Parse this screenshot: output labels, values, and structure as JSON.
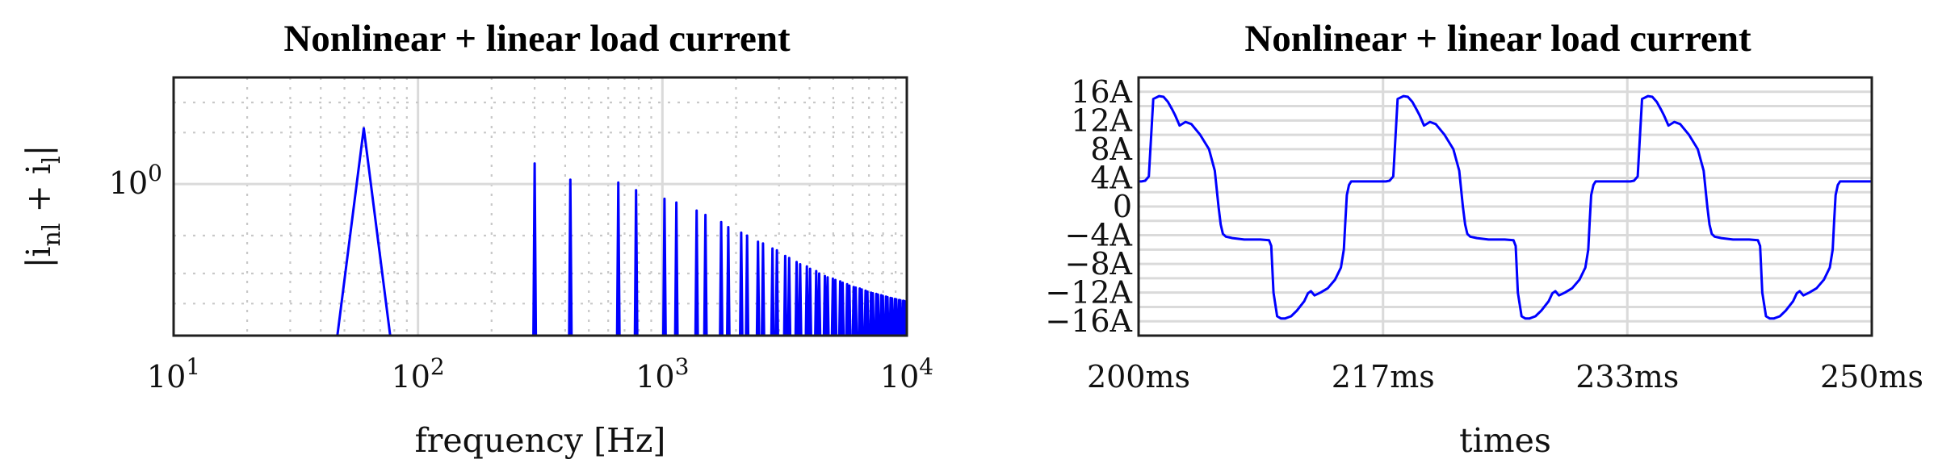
{
  "chart_data": [
    {
      "type": "line",
      "title": "Nonlinear + linear load current",
      "xlabel": "frequency [Hz]",
      "ylabel": "|i_nl + i_l|",
      "xscale": "log",
      "yscale": "log",
      "xlim": [
        10,
        10000
      ],
      "ylim": [
        0.13,
        4.2
      ],
      "x_tick_labels": [
        {
          "base": "10",
          "exp": "1",
          "value": 10
        },
        {
          "base": "10",
          "exp": "2",
          "value": 100
        },
        {
          "base": "10",
          "exp": "3",
          "value": 1000
        },
        {
          "base": "10",
          "exp": "4",
          "value": 10000
        }
      ],
      "y_tick_labels": [
        {
          "base": "10",
          "exp": "0",
          "value": 1
        }
      ],
      "grid": true,
      "series": [
        {
          "color": "#0000ff",
          "fundamental": {
            "f0": 45,
            "fpeak": 60,
            "f1": 80,
            "peak": 2.12
          },
          "harmonic_peaks": [
            {
              "f": 300,
              "v": 1.32
            },
            {
              "f": 420,
              "v": 1.06
            },
            {
              "f": 660,
              "v": 1.02
            },
            {
              "f": 780,
              "v": 0.92
            },
            {
              "f": 1020,
              "v": 0.82
            },
            {
              "f": 1140,
              "v": 0.78
            },
            {
              "f": 1380,
              "v": 0.7
            },
            {
              "f": 1500,
              "v": 0.66
            },
            {
              "f": 1740,
              "v": 0.6
            },
            {
              "f": 1860,
              "v": 0.56
            },
            {
              "f": 2100,
              "v": 0.52
            },
            {
              "f": 2220,
              "v": 0.5
            },
            {
              "f": 2460,
              "v": 0.46
            },
            {
              "f": 2580,
              "v": 0.45
            },
            {
              "f": 2820,
              "v": 0.42
            },
            {
              "f": 2940,
              "v": 0.41
            },
            {
              "f": 3180,
              "v": 0.38
            },
            {
              "f": 3300,
              "v": 0.37
            },
            {
              "f": 3540,
              "v": 0.35
            },
            {
              "f": 3660,
              "v": 0.34
            },
            {
              "f": 3900,
              "v": 0.33
            },
            {
              "f": 4020,
              "v": 0.32
            },
            {
              "f": 4260,
              "v": 0.31
            },
            {
              "f": 4380,
              "v": 0.3
            },
            {
              "f": 4620,
              "v": 0.29
            },
            {
              "f": 4740,
              "v": 0.285
            },
            {
              "f": 4980,
              "v": 0.28
            },
            {
              "f": 5100,
              "v": 0.275
            },
            {
              "f": 5340,
              "v": 0.27
            },
            {
              "f": 5460,
              "v": 0.265
            },
            {
              "f": 5700,
              "v": 0.26
            },
            {
              "f": 5820,
              "v": 0.255
            },
            {
              "f": 6060,
              "v": 0.25
            },
            {
              "f": 6180,
              "v": 0.248
            },
            {
              "f": 6420,
              "v": 0.245
            },
            {
              "f": 6540,
              "v": 0.242
            },
            {
              "f": 6780,
              "v": 0.238
            },
            {
              "f": 6900,
              "v": 0.235
            },
            {
              "f": 7140,
              "v": 0.232
            },
            {
              "f": 7260,
              "v": 0.23
            },
            {
              "f": 7500,
              "v": 0.228
            },
            {
              "f": 7620,
              "v": 0.226
            },
            {
              "f": 7860,
              "v": 0.224
            },
            {
              "f": 7980,
              "v": 0.222
            },
            {
              "f": 8220,
              "v": 0.22
            },
            {
              "f": 8340,
              "v": 0.218
            },
            {
              "f": 8580,
              "v": 0.216
            },
            {
              "f": 8700,
              "v": 0.215
            },
            {
              "f": 8940,
              "v": 0.213
            },
            {
              "f": 9060,
              "v": 0.212
            },
            {
              "f": 9300,
              "v": 0.21
            },
            {
              "f": 9420,
              "v": 0.209
            },
            {
              "f": 9660,
              "v": 0.208
            },
            {
              "f": 9780,
              "v": 0.207
            }
          ]
        }
      ]
    },
    {
      "type": "line",
      "title": "Nonlinear + linear load current",
      "xlabel": "times",
      "ylabel": "",
      "xlim": [
        200,
        250
      ],
      "ylim": [
        -18,
        18
      ],
      "x_ticks": [
        200,
        216.67,
        233.33,
        250
      ],
      "x_tick_labels": [
        "200ms",
        "217ms",
        "233ms",
        "250ms"
      ],
      "y_ticks": [
        16,
        12,
        8,
        4,
        0,
        -4,
        -8,
        -12,
        -16
      ],
      "y_tick_labels": [
        "16A",
        "12A",
        "8A",
        "4A",
        "0",
        "−4A",
        "−8A",
        "−12A",
        "−16A"
      ],
      "y_minor_step": 2,
      "grid": true,
      "series": [
        {
          "color": "#0000ff",
          "period_ms": 16.667,
          "one_period": {
            "t": [
              0,
              0.2,
              0.45,
              0.7,
              1.0,
              1.4,
              1.7,
              2.0,
              2.3,
              2.5,
              2.8,
              3.2,
              3.6,
              4.2,
              4.8,
              5.2,
              5.45,
              5.6,
              5.75,
              5.95,
              6.4,
              7.2,
              8.3,
              8.9,
              9.05,
              9.2,
              9.45,
              9.7,
              10.0,
              10.4,
              10.8,
              11.3,
              11.55,
              11.75,
              12.0,
              12.4,
              12.9,
              13.4,
              13.8,
              14.0,
              14.1,
              14.2,
              14.35,
              14.5,
              14.9,
              15.6,
              16.667
            ],
            "i": [
              3.5,
              3.5,
              3.6,
              4.2,
              15.0,
              15.4,
              15.3,
              14.6,
              13.5,
              12.7,
              11.3,
              11.8,
              11.5,
              10.0,
              8.0,
              5.0,
              0.0,
              -2.5,
              -3.8,
              -4.2,
              -4.4,
              -4.6,
              -4.6,
              -4.7,
              -5.5,
              -12.0,
              -15.3,
              -15.6,
              -15.6,
              -15.3,
              -14.5,
              -13.2,
              -12.1,
              -11.8,
              -12.4,
              -12.0,
              -11.4,
              -10.2,
              -8.5,
              -6.0,
              -2.0,
              1.6,
              3.0,
              3.5,
              3.5,
              3.5,
              3.5
            ]
          }
        }
      ]
    }
  ]
}
